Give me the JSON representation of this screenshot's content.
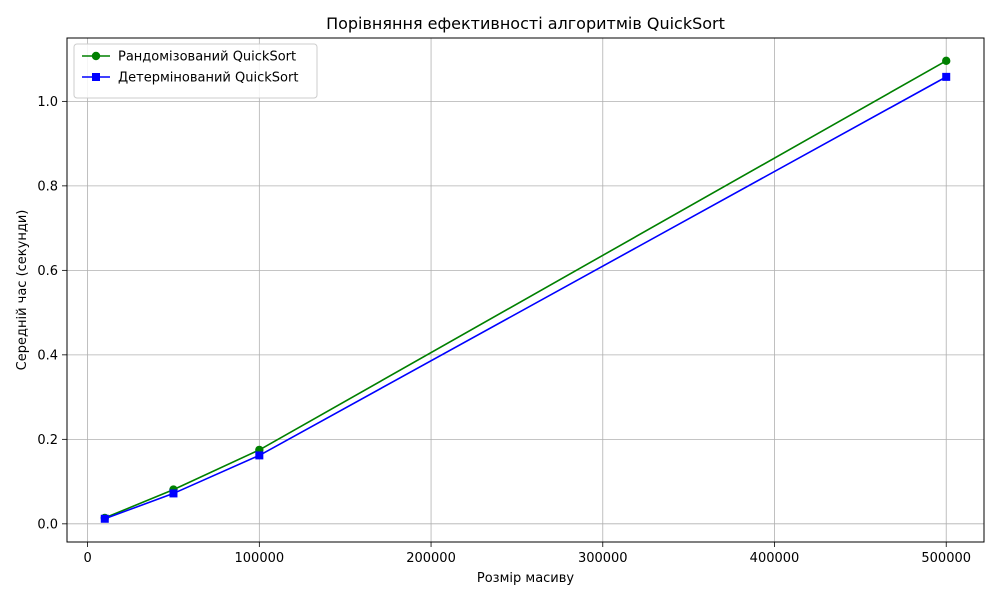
{
  "chart_data": {
    "type": "line",
    "title": "Порівняння ефективності алгоритмів QuickSort",
    "xlabel": "Розмір масиву",
    "ylabel": "Середній час (секунди)",
    "x": [
      10000,
      50000,
      100000,
      500000
    ],
    "xlim": [
      -12000,
      522000
    ],
    "ylim": [
      -0.043,
      1.15
    ],
    "xticks": [
      0,
      100000,
      200000,
      300000,
      400000,
      500000
    ],
    "xtick_labels": [
      "0",
      "100000",
      "200000",
      "300000",
      "400000",
      "500000"
    ],
    "yticks": [
      0.0,
      0.2,
      0.4,
      0.6,
      0.8,
      1.0
    ],
    "ytick_labels": [
      "0.0",
      "0.2",
      "0.4",
      "0.6",
      "0.8",
      "1.0"
    ],
    "grid": true,
    "legend_position": "top-left",
    "series": [
      {
        "name": "Рандомізований QuickSort",
        "values": [
          0.014,
          0.081,
          0.175,
          1.096
        ],
        "color": "#008000",
        "marker": "circle"
      },
      {
        "name": "Детермінований QuickSort",
        "values": [
          0.012,
          0.072,
          0.162,
          1.058
        ],
        "color": "#0000ff",
        "marker": "square"
      }
    ]
  }
}
